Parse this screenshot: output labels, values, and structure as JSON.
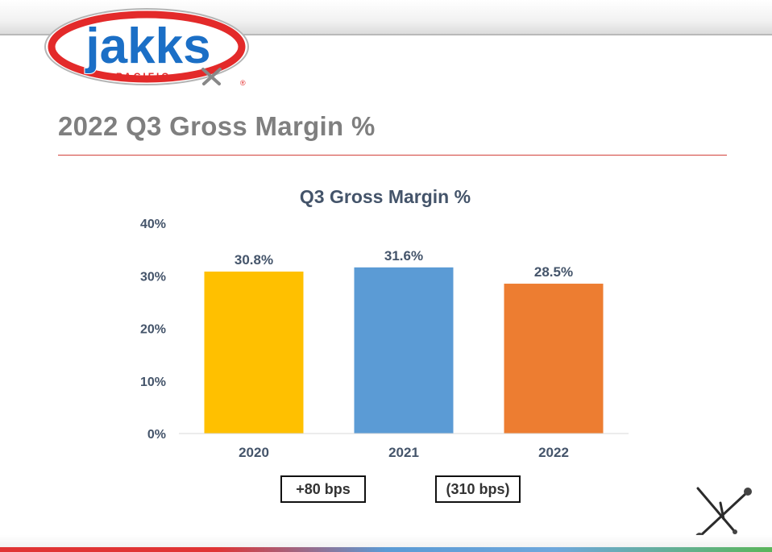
{
  "logo": {
    "brand": "jakks",
    "sub": "PACIFIC",
    "registered": "®"
  },
  "slide": {
    "title": "2022 Q3 Gross Margin %"
  },
  "chart_data": {
    "type": "bar",
    "title": "Q3 Gross Margin %",
    "xlabel": "",
    "ylabel": "",
    "categories": [
      "2020",
      "2021",
      "2022"
    ],
    "values": [
      30.8,
      31.6,
      28.5
    ],
    "data_labels": [
      "30.8%",
      "31.6%",
      "28.5%"
    ],
    "bar_colors": [
      "#FFC000",
      "#5B9BD5",
      "#ED7D31"
    ],
    "ylim": [
      0,
      40
    ],
    "y_ticks": [
      0,
      10,
      20,
      30,
      40
    ],
    "y_tick_labels": [
      "0%",
      "10%",
      "20%",
      "30%",
      "40%"
    ],
    "grid": false,
    "legend": "none"
  },
  "annotations": {
    "change_2020_2021": "+80 bps",
    "change_2021_2022": "(310 bps)"
  },
  "colors": {
    "title_gray": "#7F7F7F",
    "chart_title": "#44546A",
    "label_text": "#44546A",
    "rule_red": "#D2413A"
  },
  "icons": {
    "corner": "jack-icon",
    "logo": "jakks-pacific-logo"
  }
}
